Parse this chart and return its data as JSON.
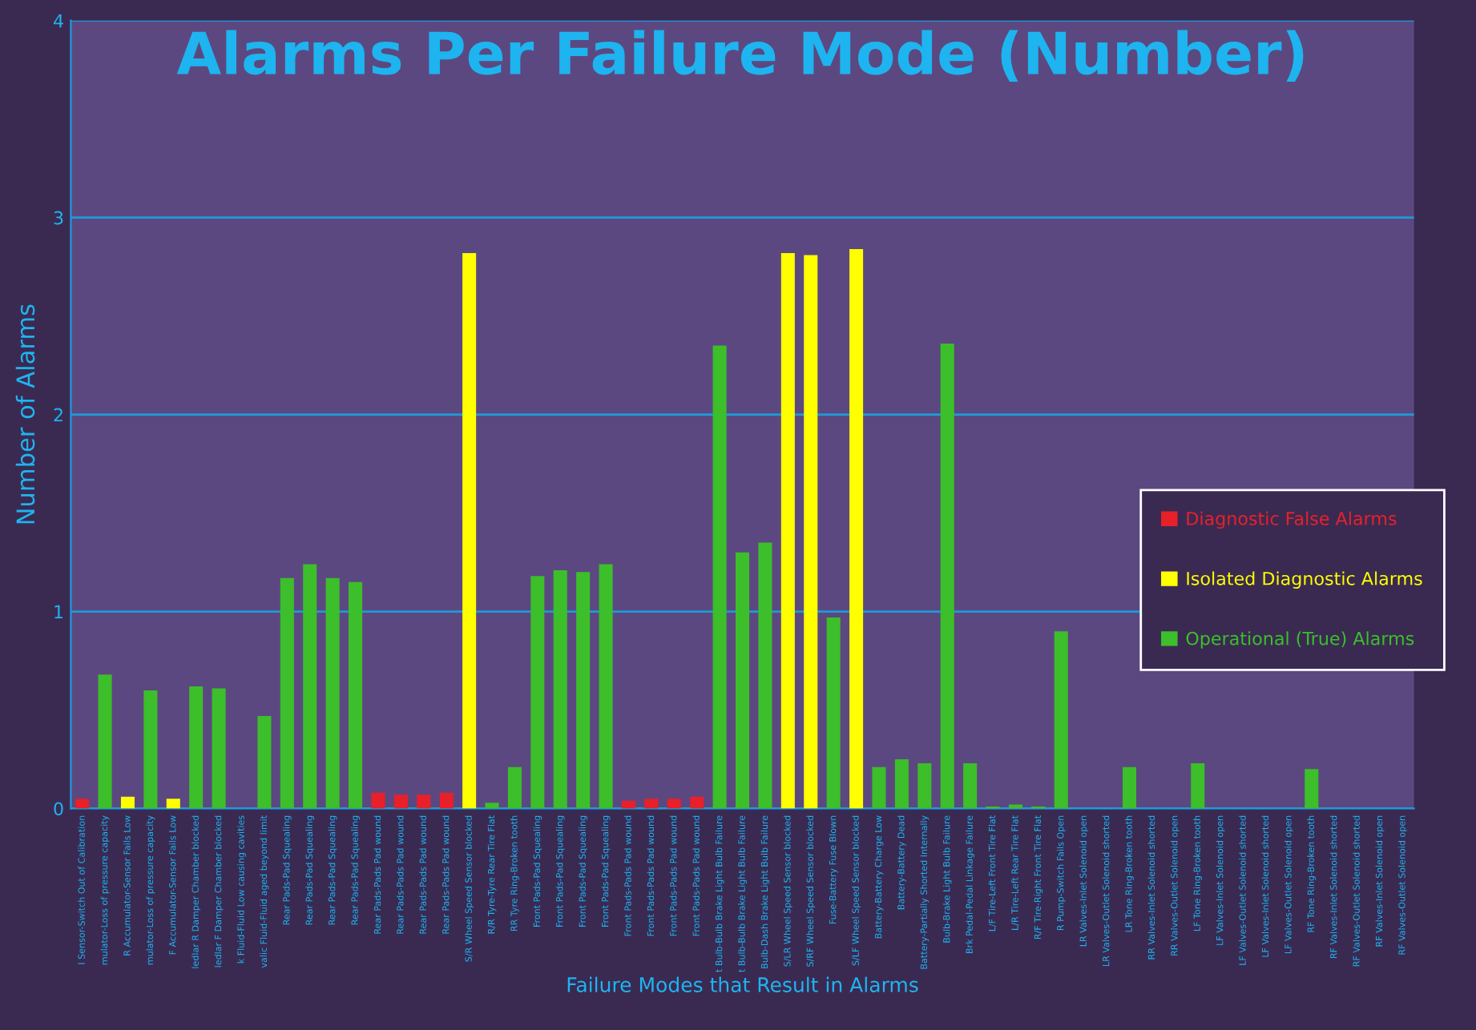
{
  "chart_data": {
    "type": "bar",
    "title": "Alarms Per Failure Mode (Number)",
    "xlabel": "Failure Modes that Result in Alarms",
    "ylabel": "Number of Alarms",
    "categories": [
      "I Sensor-Switch Out of Calibration",
      "mulator-Loss of pressure capacity",
      "R Accumulator-Sensor Fails Low",
      "mulator-Loss of pressure capacity",
      "F Accumulator-Sensor Fails Low",
      "ledlar R Damper Chamber blocked",
      "ledlar F Damper Chamber blocked",
      "k Fluid-Fluid Low causing cavities",
      "valic Fluid-Fluid aged beyond limit",
      "Rear Pads-Pad Squealing",
      "Rear Pads-Pad Squealing",
      "Rear Pads-Pad Squealing",
      "Rear Pads-Pad Squealing",
      "Rear Pads-Pads Pad wound",
      "Rear Pads-Pads Pad wound",
      "Rear Pads-Pads Pad wound",
      "Rear Pads-Pads Pad wound",
      "S/R Wheel Speed Sensor blocked",
      "R/R Tyre-Tyre Rear Tire Flat",
      "RR Tyre Ring-Broken tooth",
      "Front Pads-Pad Squealing",
      "Front Pads-Pad Squealing",
      "Front Pads-Pad Squealing",
      "Front Pads-Pad Squealing",
      "Front Pads-Pads Pad wound",
      "Front Pads-Pads Pad wound",
      "Front Pads-Pads Pad wound",
      "Front Pads-Pads Pad wound",
      "t Bulb-Bulb Brake Light Bulb Failure",
      "t Bulb-Bulb Brake Light Bulb Failure",
      "Bulb-Dash Brake Light Bulb Failure",
      "S/LR Wheel Speed Sensor blocked",
      "S/RF Wheel Speed Sensor blocked",
      "Fuse-Battery Fuse Blown",
      "S/LF Wheel Speed Sensor blocked",
      "Battery-Battery Charge Low",
      "Battery-Battery Dead",
      "Battery-Partially Shorted Internally",
      "Bulb-Brake Light Bulb Failure",
      "Brk Pedal-Pedal Linkage Failure",
      "L/F Tire-Left Front Tire Flat",
      "L/R Tire-Left Rear Tire Flat",
      "R/F Tire-Right Front Tire Flat",
      "R Pump-Switch Fails Open",
      "LR Valves-Inlet Solenoid open",
      "LR Valves-Outlet Solenoid shorted",
      "LR Tone Ring-Broken tooth",
      "RR Valves-Inlet Solenoid shorted",
      "RR Valves-Outlet Solenoid open",
      "LF Tone Ring-Broken tooth",
      "LF Valves-Inlet Solenoid open",
      "LF Valves-Outlet Solenoid shorted",
      "LF Valves-Inlet Solenoid shorted",
      "LF Valves-Outlet Solenoid open",
      "RF Tone Ring-Broken tooth",
      "RF Valves-Inlet Solenoid shorted",
      "RF Valves-Outlet Solenoid shorted",
      "RF Valves-Inlet Solenoid open",
      "RF Valves-Outlet Solenoid open"
    ],
    "series": [
      {
        "name": "Diagnostic False Alarms",
        "color": "#e8202a",
        "values": [
          0.05,
          null,
          null,
          null,
          null,
          null,
          null,
          null,
          null,
          null,
          null,
          null,
          null,
          0.08,
          0.07,
          0.07,
          0.08,
          null,
          null,
          null,
          null,
          null,
          null,
          null,
          0.04,
          0.05,
          0.05,
          0.06,
          null,
          null,
          null,
          null,
          null,
          null,
          null,
          null,
          null,
          null,
          null,
          null,
          null,
          null,
          null,
          null,
          null,
          null,
          null,
          null,
          null,
          null,
          null,
          null,
          null,
          null,
          null,
          null,
          null,
          null,
          null
        ]
      },
      {
        "name": "Isolated Diagnostic Alarms",
        "color": "#ffff00",
        "values": [
          null,
          null,
          0.06,
          null,
          0.05,
          null,
          null,
          null,
          null,
          null,
          null,
          null,
          null,
          null,
          null,
          null,
          null,
          2.82,
          null,
          null,
          null,
          null,
          null,
          null,
          null,
          null,
          null,
          null,
          null,
          null,
          null,
          2.82,
          2.81,
          null,
          2.84,
          null,
          null,
          null,
          null,
          null,
          null,
          null,
          null,
          null,
          null,
          null,
          null,
          null,
          null,
          null,
          null,
          null,
          null,
          null,
          null,
          null,
          null,
          null,
          null
        ]
      },
      {
        "name": "Operational (True) Alarms",
        "color": "#3cbf2a",
        "values": [
          null,
          0.68,
          null,
          0.6,
          null,
          0.62,
          0.61,
          null,
          0.47,
          1.17,
          1.24,
          1.17,
          1.15,
          null,
          null,
          null,
          null,
          null,
          0.03,
          0.21,
          1.18,
          1.21,
          1.2,
          1.24,
          null,
          null,
          null,
          null,
          2.35,
          1.3,
          1.35,
          null,
          null,
          0.97,
          null,
          0.21,
          0.25,
          0.23,
          2.36,
          0.23,
          0.01,
          0.02,
          0.01,
          0.9,
          null,
          null,
          0.21,
          null,
          null,
          0.23,
          null,
          null,
          null,
          null,
          0.2,
          null,
          null,
          null,
          null
        ]
      }
    ],
    "ylim": [
      0,
      4
    ],
    "yticks": [
      0,
      1,
      2,
      3,
      4
    ],
    "grid": "y",
    "legend": "right"
  }
}
